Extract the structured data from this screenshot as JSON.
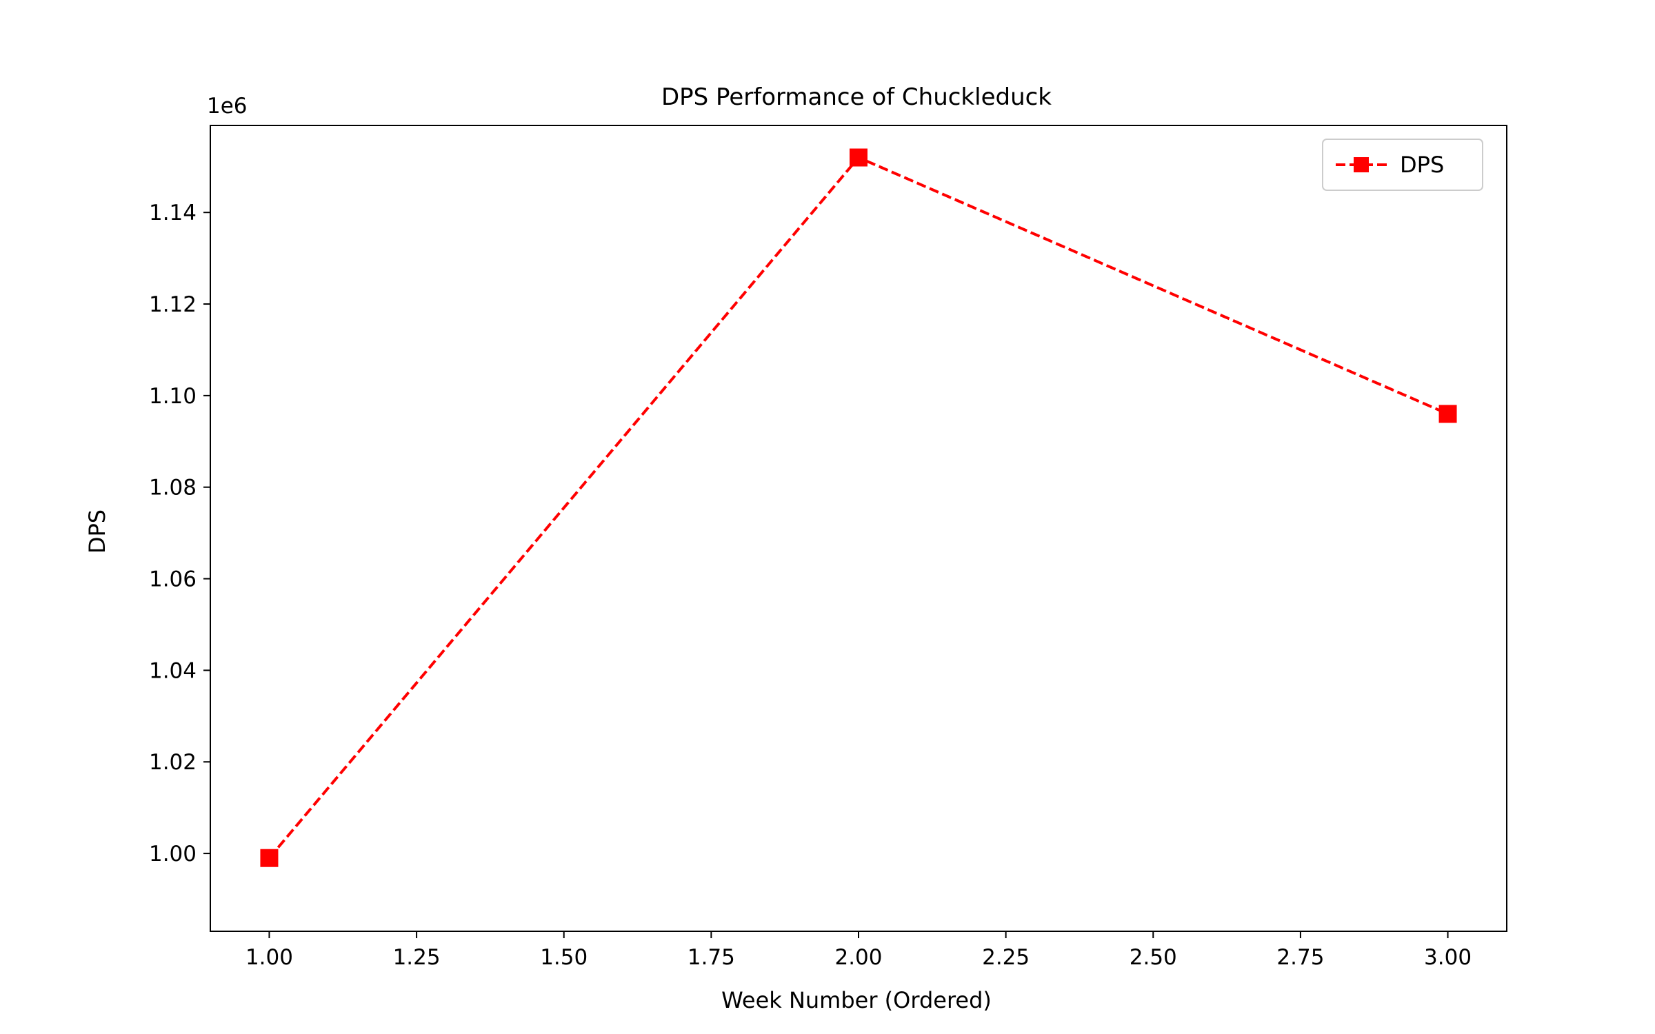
{
  "chart_data": {
    "type": "line",
    "title": "DPS Performance of Chuckleduck",
    "xlabel": "Week Number (Ordered)",
    "ylabel": "DPS",
    "y_offset_label": "1e6",
    "y_scale_factor": 1000000,
    "xlim": [
      0.9,
      3.1
    ],
    "ylim": [
      983000,
      1159000
    ],
    "x_ticks": [
      1.0,
      1.25,
      1.5,
      1.75,
      2.0,
      2.25,
      2.5,
      2.75,
      3.0
    ],
    "x_tick_labels": [
      "1.00",
      "1.25",
      "1.50",
      "1.75",
      "2.00",
      "2.25",
      "2.50",
      "2.75",
      "3.00"
    ],
    "y_ticks": [
      1000000,
      1020000,
      1040000,
      1060000,
      1080000,
      1100000,
      1120000,
      1140000
    ],
    "y_tick_labels": [
      "1.00",
      "1.02",
      "1.04",
      "1.06",
      "1.08",
      "1.10",
      "1.12",
      "1.14"
    ],
    "grid": false,
    "legend_position": "top-right",
    "series": [
      {
        "name": "DPS",
        "color": "#ff0000",
        "line_style": "dashed",
        "marker": "square",
        "x": [
          1,
          2,
          3
        ],
        "y": [
          999000,
          1152000,
          1096000
        ]
      }
    ]
  }
}
